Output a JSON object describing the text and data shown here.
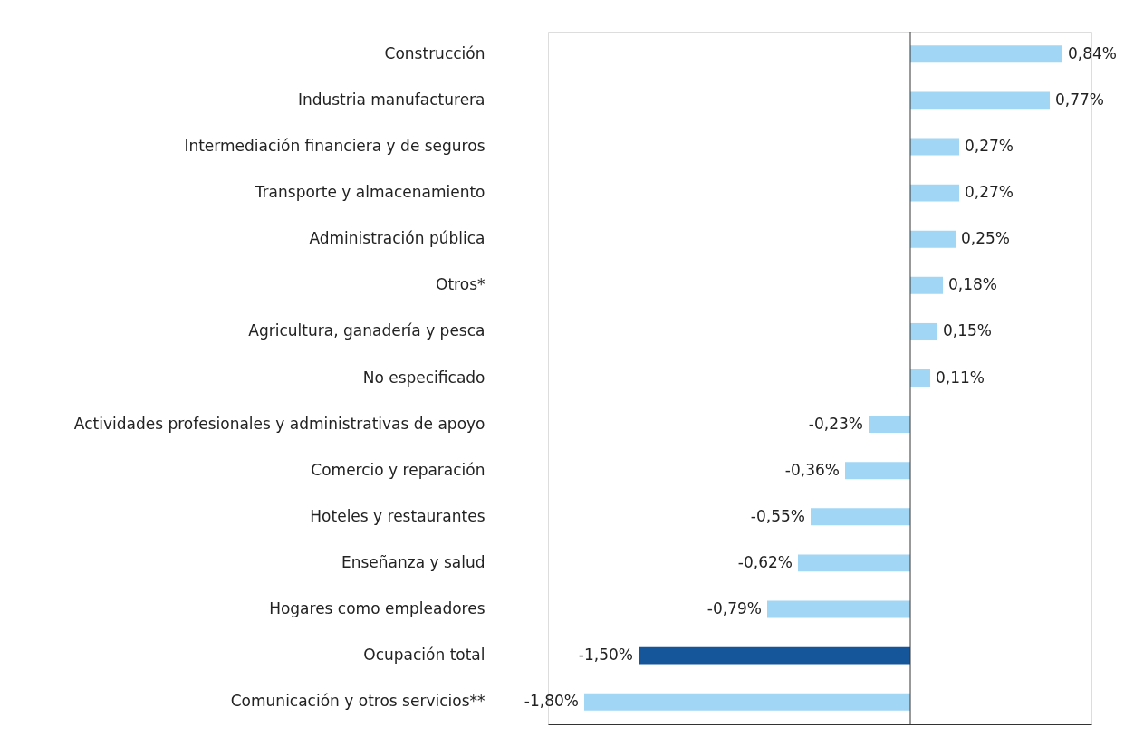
{
  "chart_data": {
    "type": "bar",
    "orientation": "horizontal",
    "categories": [
      "Construcción",
      "Industria manufacturera",
      "Intermediación financiera y de seguros",
      "Transporte y almacenamiento",
      "Administración pública",
      "Otros*",
      "Agricultura, ganadería y pesca",
      "No especificado",
      "Actividades profesionales y administrativas de apoyo",
      "Comercio y reparación",
      "Hoteles y restaurantes",
      "Enseñanza y salud",
      "Hogares como empleadores",
      "Ocupación total",
      "Comunicación y otros servicios**"
    ],
    "values": [
      0.84,
      0.77,
      0.27,
      0.27,
      0.25,
      0.18,
      0.15,
      0.11,
      -0.23,
      -0.36,
      -0.55,
      -0.62,
      -0.79,
      -1.5,
      -1.8
    ],
    "colors": [
      "#a1d6f4",
      "#a1d6f4",
      "#a1d6f4",
      "#a1d6f4",
      "#a1d6f4",
      "#a1d6f4",
      "#a1d6f4",
      "#a1d6f4",
      "#a1d6f4",
      "#a1d6f4",
      "#a1d6f4",
      "#a1d6f4",
      "#a1d6f4",
      "#15569b",
      "#a1d6f4"
    ],
    "value_labels": [
      "0,84%",
      "0,77%",
      "0,27%",
      "0,27%",
      "0,25%",
      "0,18%",
      "0,15%",
      "0,11%",
      "-0,23%",
      "-0,36%",
      "-0,55%",
      "-0,62%",
      "-0,79%",
      "-1,50%",
      "-1,80%"
    ],
    "xlim": [
      -2,
      1
    ]
  }
}
